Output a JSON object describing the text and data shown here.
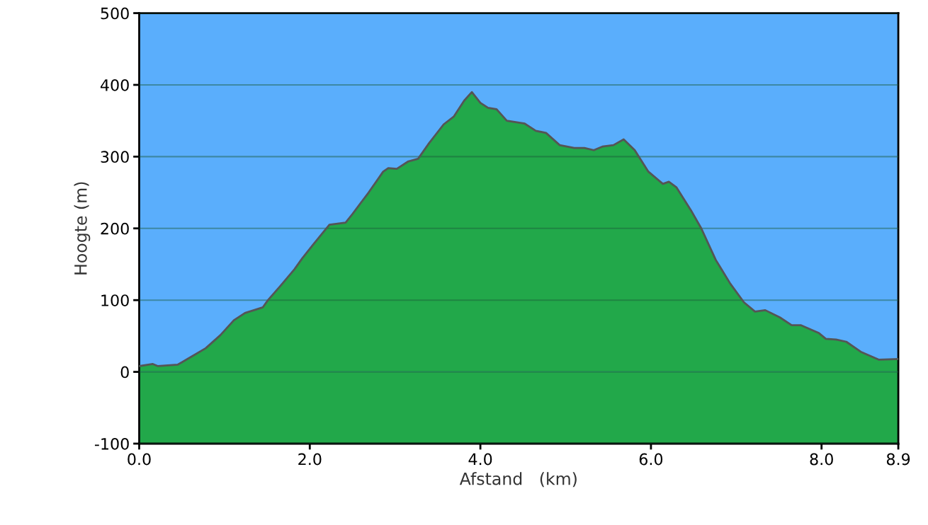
{
  "chart_data": {
    "type": "area",
    "xlabel": "Afstand   (km)",
    "ylabel": "Hoogte (m)",
    "xlim": [
      0,
      8.9
    ],
    "ylim": [
      -100,
      500
    ],
    "xticks": [
      {
        "value": 0,
        "label": "0.0"
      },
      {
        "value": 2,
        "label": "2.0"
      },
      {
        "value": 4,
        "label": "4.0"
      },
      {
        "value": 6,
        "label": "6.0"
      },
      {
        "value": 8,
        "label": "8.0"
      },
      {
        "value": 8.9,
        "label": "8.9"
      }
    ],
    "yticks": [
      -100,
      0,
      100,
      200,
      300,
      400,
      500
    ],
    "grid": "y",
    "bands": [
      {
        "axis": "y",
        "from": -100,
        "to": 0,
        "color": "#22a84a"
      }
    ],
    "series": [
      {
        "color": "#22a84a",
        "x": [
          0,
          0.16,
          0.22,
          0.45,
          0.61,
          0.78,
          0.95,
          1.11,
          1.24,
          1.45,
          1.51,
          1.65,
          1.82,
          1.91,
          2.03,
          2.16,
          2.23,
          2.42,
          2.5,
          2.69,
          2.86,
          2.92,
          3.02,
          3.15,
          3.27,
          3.4,
          3.57,
          3.69,
          3.81,
          3.9,
          4.0,
          4.09,
          4.19,
          4.31,
          4.52,
          4.65,
          4.77,
          4.93,
          5.1,
          5.22,
          5.33,
          5.43,
          5.56,
          5.68,
          5.81,
          5.97,
          6.14,
          6.21,
          6.3,
          6.47,
          6.59,
          6.76,
          6.93,
          7.09,
          7.22,
          7.34,
          7.51,
          7.65,
          7.76,
          7.97,
          8.05,
          8.17,
          8.29,
          8.46,
          8.67,
          8.9
        ],
        "values": [
          8,
          11,
          8,
          10,
          21,
          33,
          51,
          72,
          82,
          90,
          100,
          119,
          143,
          158,
          176,
          195,
          205,
          208,
          220,
          250,
          279,
          284,
          283,
          293,
          297,
          319,
          345,
          356,
          378,
          390,
          375,
          368,
          366,
          350,
          346,
          336,
          333,
          316,
          312,
          312,
          309,
          314,
          316,
          324,
          309,
          279,
          262,
          265,
          257,
          225,
          200,
          156,
          123,
          97,
          84,
          86,
          76,
          65,
          65,
          54,
          46,
          45,
          42,
          28,
          17,
          18
        ]
      }
    ]
  }
}
